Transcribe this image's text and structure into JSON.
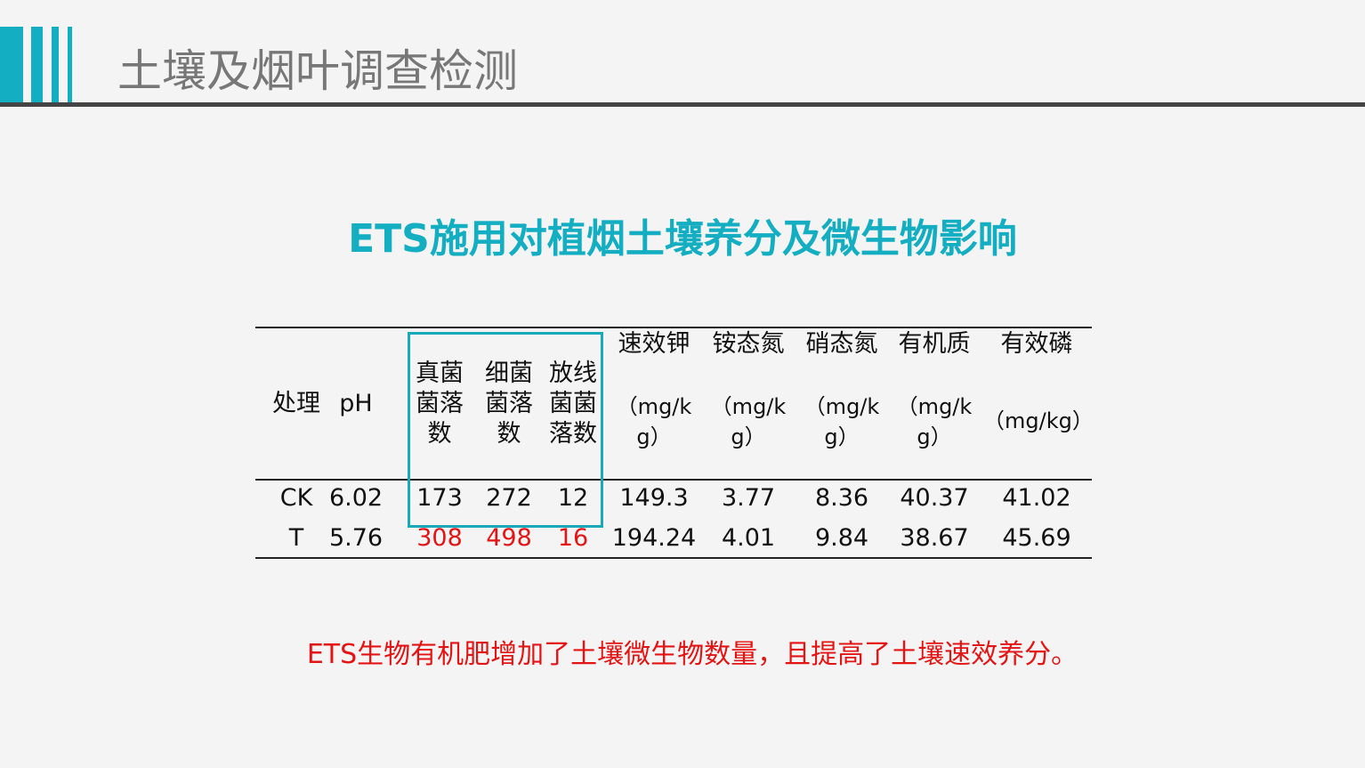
{
  "header": {
    "title": "土壤及烟叶调查检测"
  },
  "slide_title": "ETS施用对植烟土壤养分及微生物影响",
  "colors": {
    "accent": "#14aec2",
    "highlight": "#e41414",
    "title_gray": "#777777"
  },
  "table": {
    "columns": [
      {
        "name": "处理",
        "unit": ""
      },
      {
        "name": "pH",
        "unit": ""
      },
      {
        "name": "真菌菌落数",
        "unit": ""
      },
      {
        "name": "细菌菌落数",
        "unit": ""
      },
      {
        "name": "放线菌菌落数",
        "unit": ""
      },
      {
        "name": "速效钾",
        "unit": "（mg/kg）"
      },
      {
        "name": "铵态氮",
        "unit": "（mg/kg）"
      },
      {
        "name": "硝态氮",
        "unit": "（mg/kg）"
      },
      {
        "name": "有机质",
        "unit": "（mg/kg）"
      },
      {
        "name": "有效磷",
        "unit": "（mg/kg）"
      }
    ],
    "rows": [
      [
        "CK",
        "6.02",
        "173",
        "272",
        "12",
        "149.3",
        "3.77",
        "8.36",
        "40.37",
        "41.02"
      ],
      [
        "T",
        "5.76",
        "308",
        "498",
        "16",
        "194.24",
        "4.01",
        "9.84",
        "38.67",
        "45.69"
      ]
    ],
    "highlighted_columns": [
      2,
      3,
      4
    ]
  },
  "conclusion": "ETS生物有机肥增加了土壤微生物数量，且提高了土壤速效养分。"
}
